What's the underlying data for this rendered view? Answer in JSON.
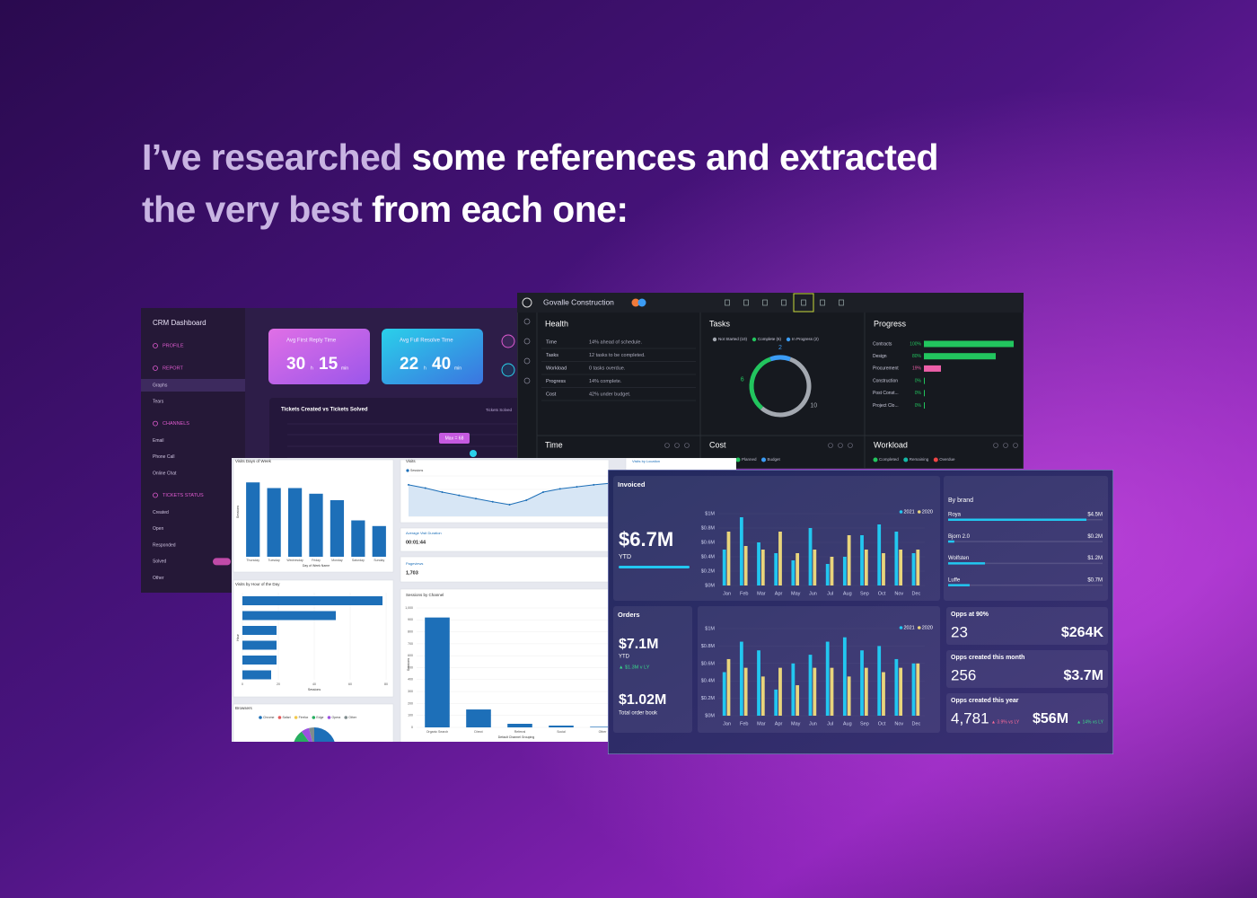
{
  "heading": {
    "line1": [
      "I’ve researched",
      "some references and extracted"
    ],
    "line2": [
      "the very best",
      "from each one:"
    ]
  },
  "crm": {
    "title": "CRM Dashboard",
    "sections": [
      {
        "title": "PROFILE",
        "items": []
      },
      {
        "title": "REPORT",
        "items": [
          "Graphs",
          "Tears"
        ]
      },
      {
        "title": "CHANNELS",
        "items": [
          "Email",
          "Phone Call",
          "Online Chat"
        ]
      },
      {
        "title": "TICKETS STATUS",
        "items": [
          "Created",
          "Open",
          "Responded",
          "Solved",
          "Other"
        ]
      }
    ],
    "cards": [
      {
        "title": "Avg First Reply Time",
        "hours": "30",
        "h": "h",
        "minutes": "15",
        "m": "min"
      },
      {
        "title": "Avg Full Resolve Time",
        "hours": "22",
        "h": "h",
        "minutes": "40",
        "m": "min"
      }
    ],
    "chart": {
      "title": "Tickets Created vs Tickets Solved",
      "legend": "Tickets Solved",
      "tooltip": "Max = 68"
    }
  },
  "govalle": {
    "title": "Govalle Construction",
    "health": {
      "title": "Health",
      "rows": [
        [
          "Time",
          "14% ahead of schedule."
        ],
        [
          "Tasks",
          "12 tasks to be completed."
        ],
        [
          "Workload",
          "0 tasks overdue."
        ],
        [
          "Progress",
          "14% complete."
        ],
        [
          "Cost",
          "42% under budget."
        ]
      ]
    },
    "tasks": {
      "title": "Tasks",
      "series": [
        {
          "name": "Not Started (10)",
          "color": "#a3a8b0",
          "value": 10
        },
        {
          "name": "Complete (6)",
          "color": "#22c55e",
          "value": 6
        },
        {
          "name": "In Progress (2)",
          "color": "#3b9cf5",
          "value": 2
        }
      ]
    },
    "progress": {
      "title": "Progress",
      "xlim": [
        0,
        100
      ],
      "rows": [
        {
          "label": "Contracts",
          "value": 100,
          "value_label": "100%",
          "color": "#22c55e"
        },
        {
          "label": "Design",
          "value": 80,
          "value_label": "80%",
          "color": "#22c55e"
        },
        {
          "label": "Procurement",
          "value": 19,
          "value_label": "19%",
          "color": "#ec5fa8"
        },
        {
          "label": "Construction",
          "value": 0,
          "value_label": "0%",
          "color": "#22c55e"
        },
        {
          "label": "Post Const...",
          "value": 0,
          "value_label": "0%",
          "color": "#22c55e"
        },
        {
          "label": "Project Clo...",
          "value": 0,
          "value_label": "0%",
          "color": "#22c55e"
        }
      ]
    },
    "bottom": [
      {
        "title": "Time",
        "legend": []
      },
      {
        "title": "Cost",
        "legend": [
          {
            "name": "Planned",
            "color": "#22c55e"
          },
          {
            "name": "Budget",
            "color": "#3b9cf5"
          }
        ]
      },
      {
        "title": "Workload",
        "legend": [
          {
            "name": "Completed",
            "color": "#22c55e"
          },
          {
            "name": "Remaining",
            "color": "#14b8a6"
          },
          {
            "name": "Overdue",
            "color": "#ef4444"
          }
        ]
      }
    ]
  },
  "analytics": {
    "days": {
      "title": "Visits Days of Week",
      "categories": [
        "Thursday",
        "Tuesday",
        "Wednesday",
        "Friday",
        "Monday",
        "Saturday",
        "Sunday"
      ],
      "values": [
        92,
        85,
        85,
        78,
        70,
        45,
        38
      ],
      "ylim": [
        0,
        100
      ],
      "x_label": "Day of Week Name",
      "y_label": "Sessions",
      "color": "#1d6fb8"
    },
    "visits": {
      "title": "Visits",
      "legend": "Sessions",
      "values": [
        78,
        70,
        60,
        52,
        44,
        36,
        29,
        40,
        60,
        68,
        73,
        78,
        82
      ],
      "ylim": [
        0,
        100
      ],
      "color": "#1d6fb8"
    },
    "duration": {
      "title": "Average Visit Duration",
      "value": "00:01:44"
    },
    "pageviews": {
      "title": "Pageviews",
      "value": "1,703"
    },
    "hours": {
      "title": "Visits by Hour of the Day",
      "values": [
        78,
        52,
        19,
        19,
        19,
        16
      ],
      "xlim": [
        0,
        80
      ],
      "xticks": [
        0,
        20,
        40,
        60,
        80
      ],
      "x_label": "Sessions",
      "y_label": "Hour",
      "color": "#1d6fb8"
    },
    "channels": {
      "title": "Sessions by Channel",
      "categories": [
        "Organic Search",
        "Direct",
        "Referral",
        "Social",
        "Other"
      ],
      "values": [
        920,
        150,
        30,
        15,
        5
      ],
      "ylim": [
        0,
        1000
      ],
      "yticks": [
        0,
        100,
        200,
        300,
        400,
        500,
        600,
        700,
        800,
        900,
        {
          "value": 1000,
          "label": "1,000"
        }
      ],
      "x_label": "Default Channel Grouping",
      "y_label": "Sessions",
      "color": "#1d6fb8"
    },
    "browsers": {
      "title": "Browsers",
      "series": [
        {
          "name": "Chrome",
          "color": "#1d6fb8",
          "value": 45
        },
        {
          "name": "Safari",
          "color": "#e45858",
          "value": 20
        },
        {
          "name": "Firefox",
          "color": "#f2c94c",
          "value": 15
        },
        {
          "name": "Edge",
          "color": "#27ae60",
          "value": 10
        },
        {
          "name": "Opera",
          "color": "#9b51e0",
          "value": 6
        },
        {
          "name": "Other",
          "color": "#7f8c8d",
          "value": 4
        }
      ]
    },
    "location": {
      "title": "Visits by Location"
    }
  },
  "sales": {
    "invoiced": {
      "title": "Invoiced",
      "value": "$6.7M",
      "note": "YTD",
      "chart": {
        "categories": [
          "Jan",
          "Feb",
          "Mar",
          "Apr",
          "May",
          "Jun",
          "Jul",
          "Aug",
          "Sep",
          "Oct",
          "Nov",
          "Dec"
        ],
        "series": [
          {
            "name": "2021",
            "color": "#22c7f0",
            "values": [
              0.5,
              0.95,
              0.6,
              0.45,
              0.35,
              0.8,
              0.3,
              0.4,
              0.7,
              0.85,
              0.75,
              0.45
            ]
          },
          {
            "name": "2020",
            "color": "#e9d57c",
            "values": [
              0.75,
              0.55,
              0.5,
              0.75,
              0.45,
              0.5,
              0.4,
              0.7,
              0.5,
              0.45,
              0.5,
              0.5
            ]
          }
        ],
        "ylim": [
          0,
          1
        ],
        "yticks": [
          {
            "value": 0,
            "label": "$0M"
          },
          {
            "value": 0.2,
            "label": "$0.2M"
          },
          {
            "value": 0.4,
            "label": "$0.4M"
          },
          {
            "value": 0.6,
            "label": "$0.6M"
          },
          {
            "value": 0.8,
            "label": "$0.8M"
          },
          {
            "value": 1,
            "label": "$1M"
          }
        ]
      }
    },
    "brands": {
      "title": "By brand",
      "rows": [
        {
          "name": "Roya",
          "value": 4.5,
          "value_label": "$4.5M"
        },
        {
          "name": "Bjorn 2.0",
          "value": 0.2,
          "value_label": "$0.2M"
        },
        {
          "name": "Wolfsten",
          "value": 1.2,
          "value_label": "$1.2M"
        },
        {
          "name": "Luffe",
          "value": 0.7,
          "value_label": "$0.7M"
        }
      ],
      "color": "#22c7f0"
    },
    "orders": {
      "title": "Orders",
      "ytd": "$7.1M",
      "ytd_label": "YTD",
      "change": "▲ $1.3M v LY",
      "book": "$1.02M",
      "book_label": "Total order book",
      "chart": {
        "categories": [
          "Jan",
          "Feb",
          "Mar",
          "Apr",
          "May",
          "Jun",
          "Jul",
          "Aug",
          "Sep",
          "Oct",
          "Nov",
          "Dec"
        ],
        "series": [
          {
            "name": "2021",
            "color": "#22c7f0",
            "values": [
              0.5,
              0.85,
              0.75,
              0.3,
              0.6,
              0.7,
              0.85,
              0.9,
              0.75,
              0.8,
              0.65,
              0.6
            ]
          },
          {
            "name": "2020",
            "color": "#e9d57c",
            "values": [
              0.65,
              0.55,
              0.45,
              0.55,
              0.35,
              0.55,
              0.55,
              0.45,
              0.55,
              0.5,
              0.55,
              0.6
            ]
          }
        ],
        "ylim": [
          0,
          1
        ],
        "yticks": [
          {
            "value": 0,
            "label": "$0M"
          },
          {
            "value": 0.2,
            "label": "$0.2M"
          },
          {
            "value": 0.4,
            "label": "$0.4M"
          },
          {
            "value": 0.6,
            "label": "$0.6M"
          },
          {
            "value": 0.8,
            "label": "$0.8M"
          },
          {
            "value": 1,
            "label": "$1M"
          }
        ]
      }
    },
    "opps": [
      {
        "title": "Opps at 90%",
        "count": "23",
        "amount": "$264K"
      },
      {
        "title": "Opps created this month",
        "count": "256",
        "amount": "$3.7M"
      },
      {
        "title": "Opps created this year",
        "count": "4,781",
        "count_change": "▲ 3.9% vs LY",
        "amount": "$56M",
        "amount_change": "▲ 14% vs LY"
      }
    ]
  }
}
